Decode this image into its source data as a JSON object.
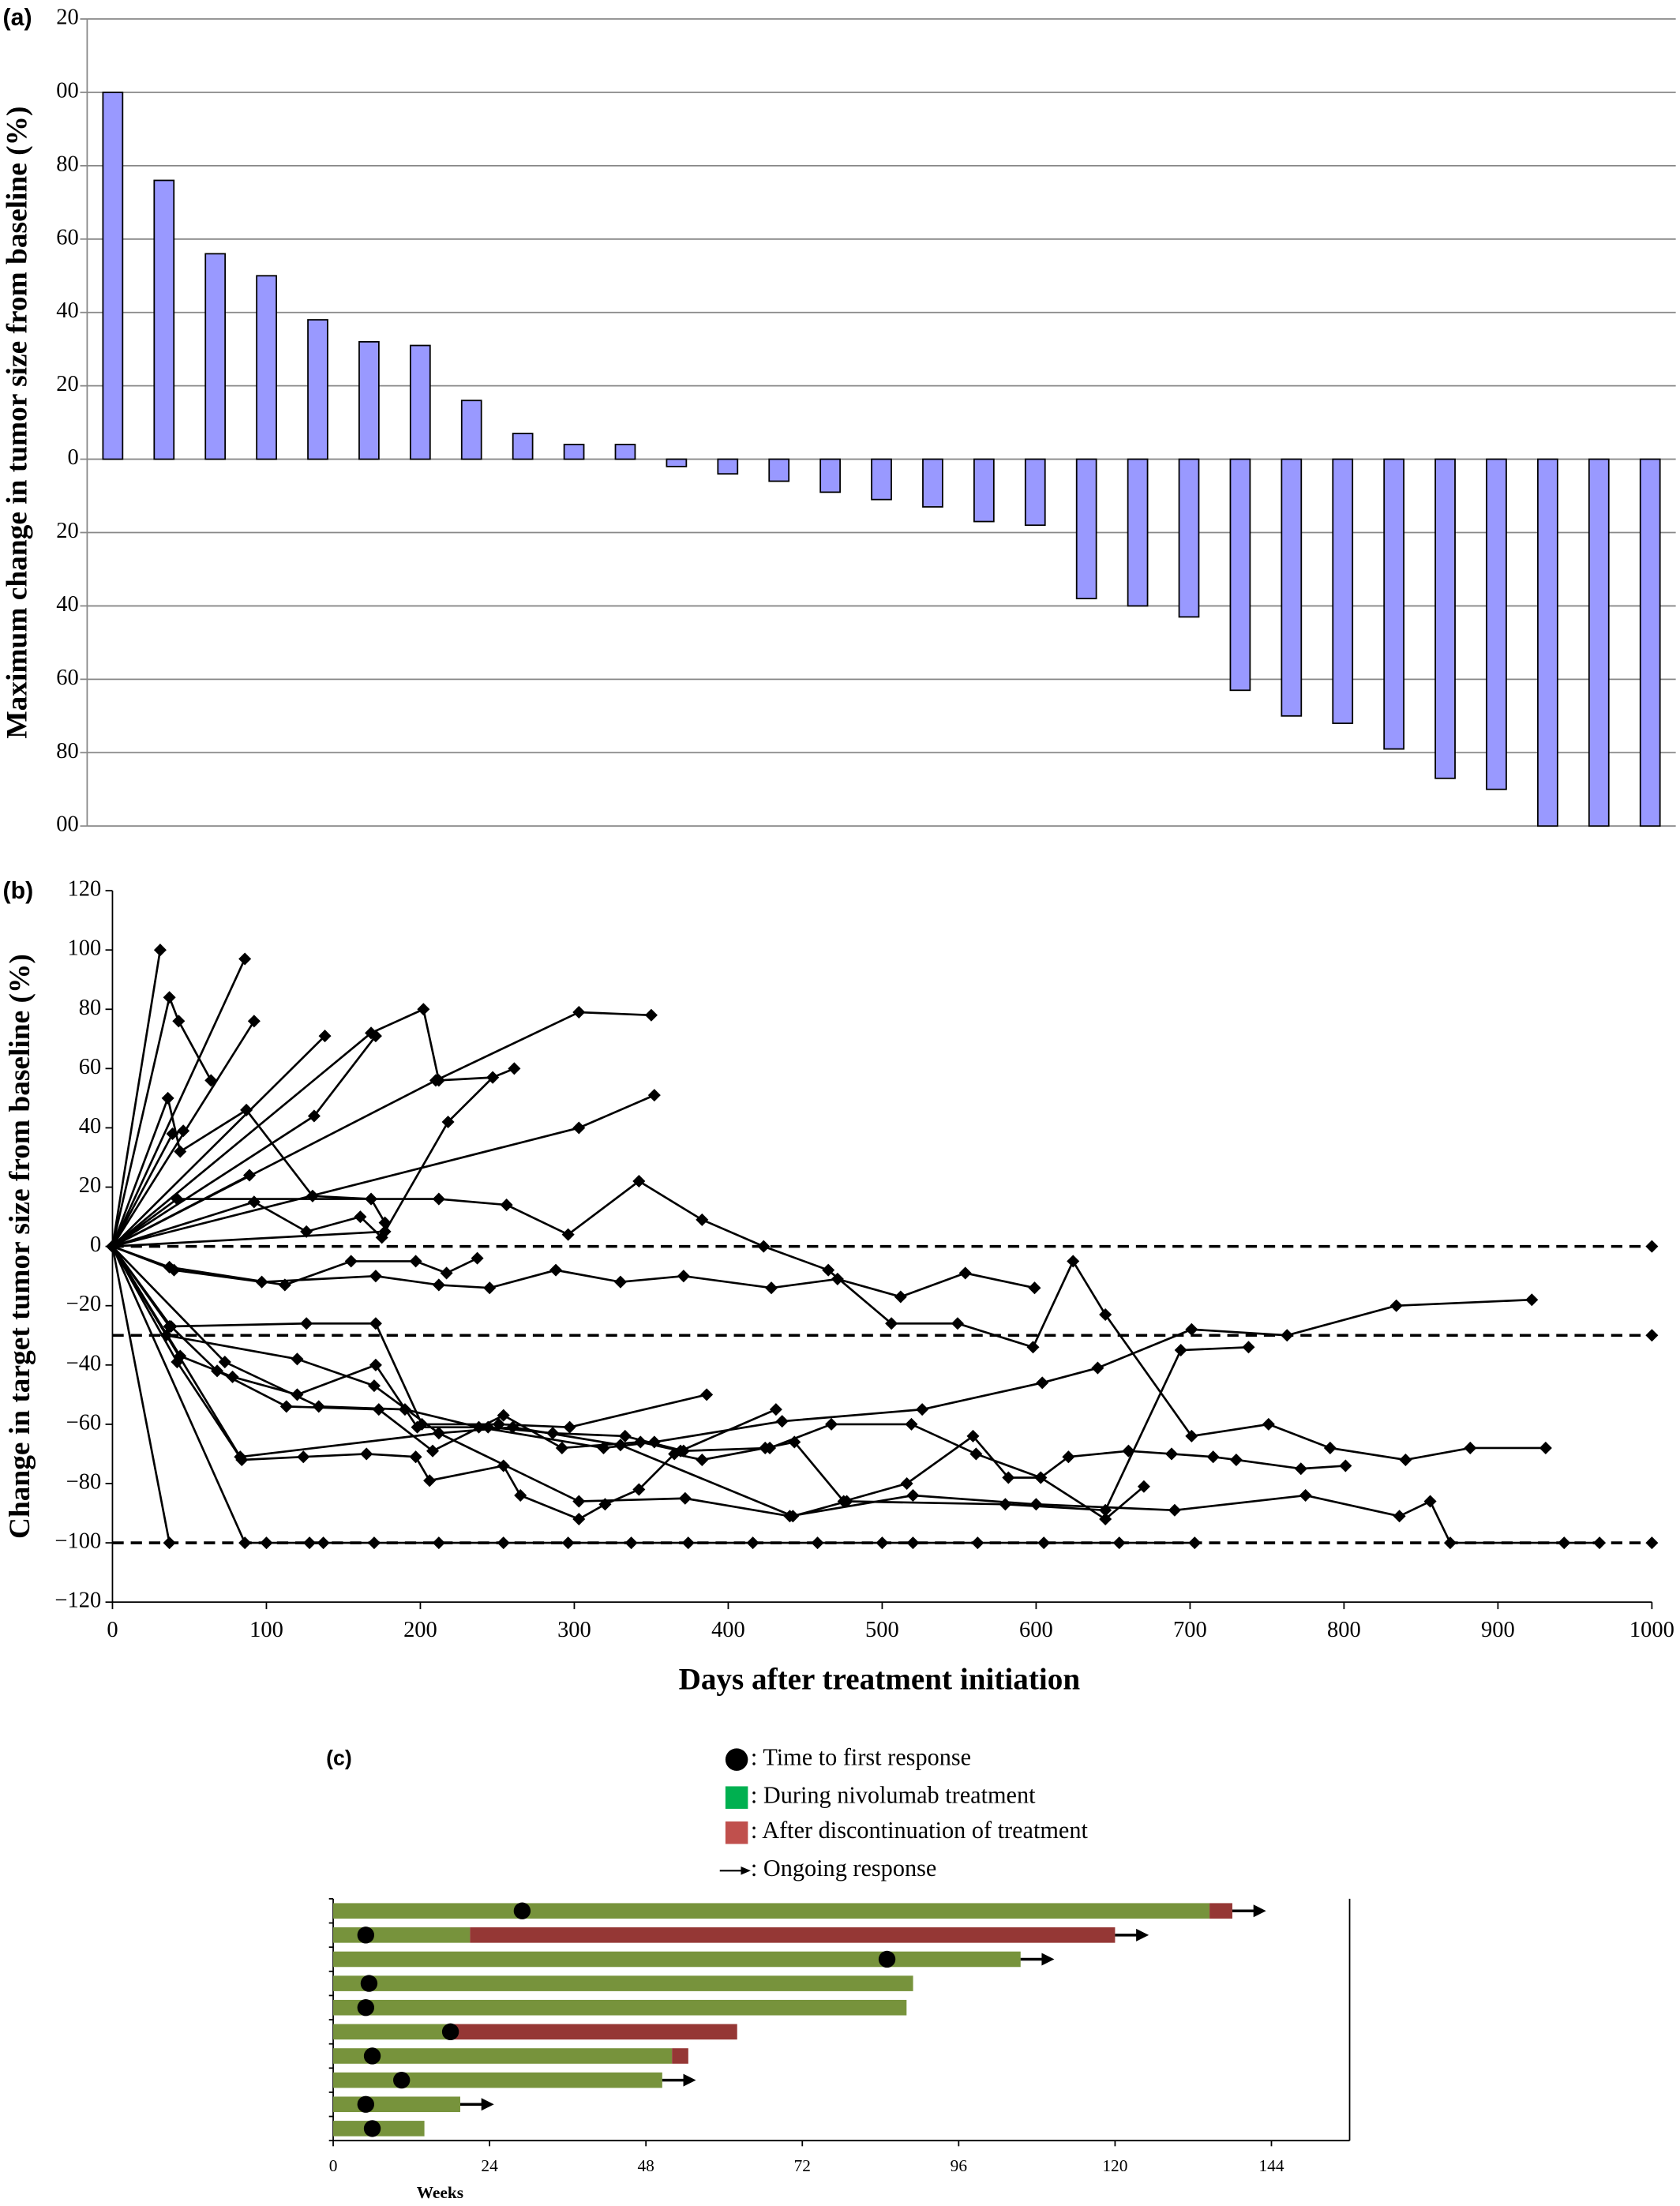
{
  "chart_data": [
    {
      "type": "bar",
      "panel_label": "(a)",
      "y_label": "Maximum change in tumor size from baseline (%)",
      "values": [
        100,
        76,
        56,
        50,
        38,
        32,
        31,
        16,
        7,
        4,
        4,
        -2,
        -4,
        -6,
        -9,
        -11,
        -13,
        -17,
        -18,
        -38,
        -40,
        -43,
        -63,
        -70,
        -72,
        -79,
        -87,
        -90,
        -100,
        -100,
        -100
      ],
      "color": "#9999ff",
      "ylim": [
        -100,
        120
      ],
      "yticks": [
        {
          "value": -100,
          "label": "00"
        },
        {
          "value": -80,
          "label": "80"
        },
        {
          "value": -60,
          "label": "60"
        },
        {
          "value": -40,
          "label": "40"
        },
        {
          "value": -20,
          "label": "20"
        },
        0,
        20,
        40,
        60,
        80,
        {
          "value": 100,
          "label": "00"
        },
        {
          "value": 120,
          "label": "20"
        }
      ],
      "grid": true
    },
    {
      "type": "line",
      "panel_label": "(b)",
      "x_label": "Days after treatment initiation",
      "y_label": "Change in target tumor size from baseline (%)",
      "color": "#000000",
      "xlim": [
        0,
        1000
      ],
      "xticks": [
        0,
        100,
        200,
        300,
        400,
        500,
        600,
        700,
        800,
        900,
        1000
      ],
      "ylim": [
        -120,
        120
      ],
      "yticks": [
        {
          "value": -120,
          "label": "−120"
        },
        {
          "value": -100,
          "label": "−100"
        },
        {
          "value": -80,
          "label": "−80"
        },
        {
          "value": -60,
          "label": "−60"
        },
        {
          "value": -40,
          "label": "−40"
        },
        {
          "value": -20,
          "label": "−20"
        },
        0,
        20,
        40,
        60,
        80,
        100,
        120
      ],
      "hlines": [
        0,
        -30,
        -100
      ],
      "series": [
        {
          "x": [
            0,
            31
          ],
          "values": [
            0,
            100
          ]
        },
        {
          "x": [
            0,
            37,
            43,
            64
          ],
          "values": [
            0,
            84,
            76,
            56
          ]
        },
        {
          "x": [
            0,
            86
          ],
          "values": [
            0,
            97
          ]
        },
        {
          "x": [
            0,
            92
          ],
          "values": [
            0,
            76
          ]
        },
        {
          "x": [
            0,
            138
          ],
          "values": [
            0,
            71
          ]
        },
        {
          "x": [
            0,
            168,
            202,
            212,
            247,
            261
          ],
          "values": [
            0,
            72,
            80,
            56,
            57,
            60
          ]
        },
        {
          "x": [
            0,
            36,
            44,
            87,
            130,
            168,
            177
          ],
          "values": [
            0,
            50,
            32,
            46,
            17,
            16,
            8
          ]
        },
        {
          "x": [
            0,
            39,
            46
          ],
          "values": [
            0,
            38,
            39
          ]
        },
        {
          "x": [
            0,
            89
          ],
          "values": [
            0,
            24
          ]
        },
        {
          "x": [
            0,
            131,
            171
          ],
          "values": [
            0,
            44,
            71
          ]
        },
        {
          "x": [
            0,
            177,
            218,
            247
          ],
          "values": [
            0,
            5,
            42,
            57
          ]
        },
        {
          "x": [
            0,
            303,
            352
          ],
          "values": [
            0,
            40,
            51
          ]
        },
        {
          "x": [
            0,
            42,
            212,
            256,
            296,
            342,
            383,
            423,
            465,
            506,
            549,
            598,
            624,
            645,
            701,
            751,
            791,
            840,
            882,
            931
          ],
          "values": [
            0,
            16,
            16,
            14,
            4,
            22,
            9,
            0,
            -8,
            -26,
            -26,
            -34,
            -5,
            -23,
            -64,
            -60,
            -68,
            -72,
            -68,
            -68
          ]
        },
        {
          "x": [
            0,
            210,
            303,
            350
          ],
          "values": [
            0,
            56,
            79,
            78
          ]
        },
        {
          "x": [
            0,
            40,
            97,
            171,
            212,
            245,
            288,
            330,
            371,
            428,
            471,
            512,
            554,
            599
          ],
          "values": [
            0,
            -8,
            -12,
            -10,
            -13,
            -14,
            -8,
            -12,
            -10,
            -14,
            -11,
            -17,
            -9,
            -14
          ]
        },
        {
          "x": [
            0,
            92,
            126,
            161,
            175
          ],
          "values": [
            0,
            15,
            5,
            10,
            3
          ]
        },
        {
          "x": [
            0,
            37,
            112,
            155,
            197,
            217,
            237
          ],
          "values": [
            0,
            -7,
            -13,
            -5,
            -5,
            -9,
            -4
          ]
        },
        {
          "x": [
            0,
            37
          ],
          "values": [
            0,
            -100
          ]
        },
        {
          "x": [
            0,
            86,
            100,
            128,
            137,
            170,
            212,
            254,
            296,
            337,
            374,
            416,
            458,
            500,
            520,
            562,
            605,
            654,
            703
          ],
          "values": [
            0,
            -100,
            -100,
            -100,
            -100,
            -100,
            -100,
            -100,
            -100,
            -100,
            -100,
            -100,
            -100,
            -100,
            -100,
            -100,
            -100,
            -100,
            -100
          ]
        },
        {
          "x": [
            0,
            42,
            84,
            124,
            165,
            197,
            206,
            254,
            265,
            303,
            320,
            342,
            365,
            383,
            424,
            443,
            475,
            516,
            559,
            582,
            603,
            645,
            670
          ],
          "values": [
            0,
            -39,
            -72,
            -71,
            -70,
            -71,
            -79,
            -74,
            -84,
            -92,
            -87,
            -82,
            -70,
            -72,
            -68,
            -66,
            -86,
            -80,
            -64,
            -78,
            -78,
            -92,
            -81
          ]
        },
        {
          "x": [
            0,
            44,
            78,
            120,
            171,
            198,
            244,
            286,
            333,
            371,
            427,
            467,
            519,
            561,
            603,
            621,
            660,
            688,
            715,
            730,
            772,
            801
          ],
          "values": [
            0,
            -37,
            -44,
            -50,
            -40,
            -61,
            -61,
            -63,
            -64,
            -69,
            -68,
            -60,
            -60,
            -70,
            -78,
            -71,
            -69,
            -70,
            -71,
            -72,
            -75,
            -74
          ]
        },
        {
          "x": [
            0,
            38,
            68,
            113,
            173,
            208,
            254,
            292,
            343,
            369,
            431
          ],
          "values": [
            0,
            -27,
            -42,
            -54,
            -55,
            -69,
            -57,
            -68,
            -66,
            -69,
            -55
          ]
        },
        {
          "x": [
            0,
            73,
            134,
            190,
            238,
            319,
            352,
            435,
            526,
            604,
            640,
            701,
            763,
            834,
            922
          ],
          "values": [
            0,
            -39,
            -54,
            -55,
            -61,
            -68,
            -66,
            -59,
            -55,
            -46,
            -41,
            -28,
            -30,
            -20,
            -18
          ]
        },
        {
          "x": [
            0,
            37,
            126,
            171,
            201,
            251,
            297,
            386
          ],
          "values": [
            0,
            -27,
            -26,
            -26,
            -60,
            -60,
            -61,
            -50
          ]
        },
        {
          "x": [
            0,
            35,
            120,
            170,
            212,
            260,
            330,
            442,
            477,
            580,
            645,
            694,
            738
          ],
          "values": [
            0,
            -30,
            -38,
            -47,
            -63,
            -61,
            -67,
            -91,
            -86,
            -87,
            -89,
            -35,
            -34
          ]
        },
        {
          "x": [
            0,
            83,
            212,
            303,
            372,
            440,
            520,
            600,
            690,
            775,
            836,
            856,
            869,
            943,
            966
          ],
          "values": [
            0,
            -71,
            -63,
            -86,
            -85,
            -91,
            -84,
            -87,
            -89,
            -84,
            -91,
            -86,
            -100,
            -100,
            -100
          ]
        }
      ]
    },
    {
      "type": "swimmer",
      "panel_label": "(c)",
      "x_label": "Weeks",
      "xlim": [
        0,
        156
      ],
      "xticks": [
        0,
        24,
        48,
        72,
        96,
        120,
        144
      ],
      "markers": {
        "name": ": Time to first response",
        "values": [
          29,
          5,
          85,
          5.5,
          5,
          18,
          6,
          10.5,
          5,
          6
        ]
      },
      "series": [
        {
          "name": ": During nivolumab treatment",
          "color": "#77933c",
          "legend_color": "#00b050",
          "values": [
            134.5,
            21,
            105.5,
            89,
            88,
            17.5,
            52,
            50.5,
            19.5,
            14
          ]
        },
        {
          "name": ": After discontinuation of treatment",
          "color": "#953735",
          "legend_color": "#c0504d",
          "values": [
            3.5,
            99,
            null,
            null,
            null,
            44.5,
            2.5,
            null,
            null,
            null
          ]
        }
      ],
      "ongoing": {
        "name": ": Ongoing response",
        "values": [
          true,
          true,
          true,
          false,
          false,
          false,
          false,
          true,
          true,
          false
        ]
      }
    }
  ]
}
